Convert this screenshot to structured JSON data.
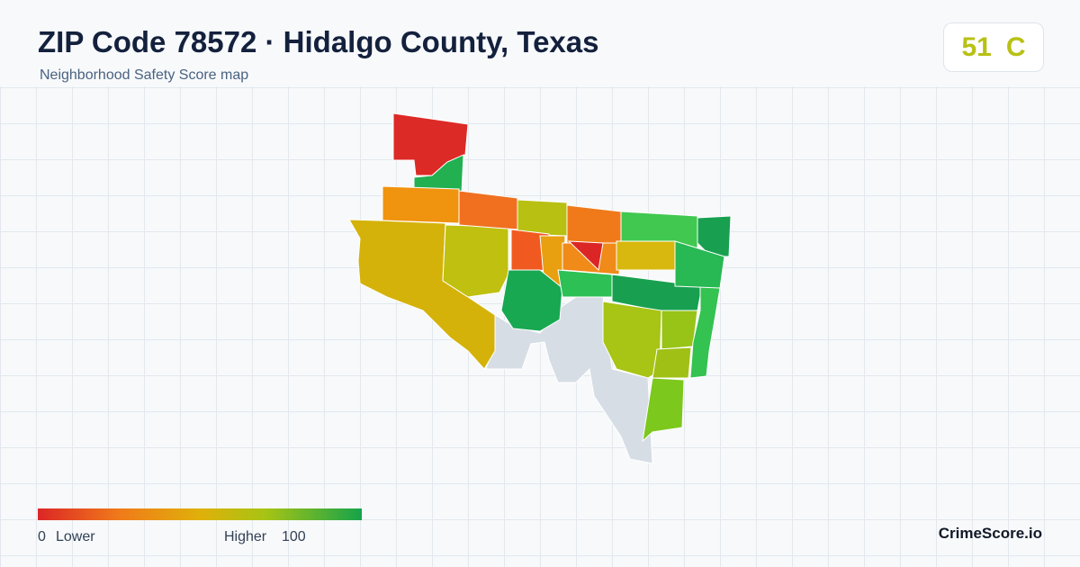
{
  "header": {
    "title": "ZIP Code 78572 · Hidalgo County, Texas",
    "subtitle": "Neighborhood Safety Score map"
  },
  "score": {
    "value": 51,
    "grade": "C"
  },
  "legend": {
    "min": 0,
    "min_label": "Lower",
    "max_label": "Higher",
    "max": 100
  },
  "brand": "CrimeScore.io"
}
